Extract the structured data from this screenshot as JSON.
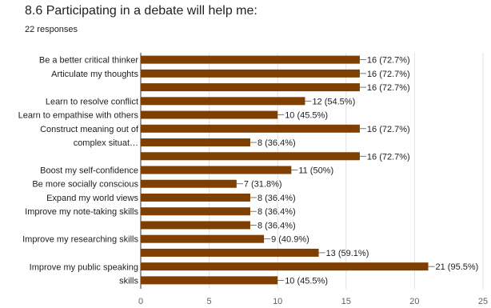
{
  "header": {
    "title": "8.6 Participating in a debate will help me:",
    "subtitle": "22 responses"
  },
  "chart_data": {
    "type": "bar",
    "orientation": "horizontal",
    "title": "8.6 Participating in a debate will help me:",
    "subtitle": "22 responses",
    "bar_color": "#7f3f00",
    "xlim": [
      0,
      25
    ],
    "xticks": [
      "0",
      "5",
      "10",
      "15",
      "20",
      "25"
    ],
    "grid": true,
    "categories": [
      {
        "label": [
          "Be a better critical thinker"
        ],
        "value": 16,
        "label_text": "16 (72.7%)"
      },
      {
        "label": [
          "Articulate my thoughts"
        ],
        "value": 16,
        "label_text": "16 (72.7%)"
      },
      {
        "label": [],
        "value": 16,
        "label_text": "16 (72.7%)"
      },
      {
        "label": [
          "Learn to resolve conflict"
        ],
        "value": 12,
        "label_text": "12 (54.5%)"
      },
      {
        "label": [
          "Learn to empathise with others"
        ],
        "value": 10,
        "label_text": "10 (45.5%)"
      },
      {
        "label": [
          "Construct meaning out of",
          "complex situat…"
        ],
        "value": 16,
        "label_text": "16 (72.7%)"
      },
      {
        "label": [],
        "value": 8,
        "label_text": "8 (36.4%)"
      },
      {
        "label": [],
        "value": 16,
        "label_text": "16 (72.7%)"
      },
      {
        "label": [
          "Boost my self-confidence"
        ],
        "value": 11,
        "label_text": "11 (50%)"
      },
      {
        "label": [
          "Be more socially conscious"
        ],
        "value": 7,
        "label_text": "7 (31.8%)"
      },
      {
        "label": [
          "Expand my world views"
        ],
        "value": 8,
        "label_text": "8 (36.4%)"
      },
      {
        "label": [
          "Improve my note-taking skills"
        ],
        "value": 8,
        "label_text": "8 (36.4%)"
      },
      {
        "label": [],
        "value": 8,
        "label_text": "8 (36.4%)"
      },
      {
        "label": [
          "Improve my researching skills"
        ],
        "value": 9,
        "label_text": "9 (40.9%)"
      },
      {
        "label": [],
        "value": 13,
        "label_text": "13 (59.1%)"
      },
      {
        "label": [
          "Improve my public speaking",
          "skills"
        ],
        "value": 21,
        "label_text": "21 (95.5%)"
      },
      {
        "label": [],
        "value": 10,
        "label_text": "10 (45.5%)"
      }
    ]
  }
}
